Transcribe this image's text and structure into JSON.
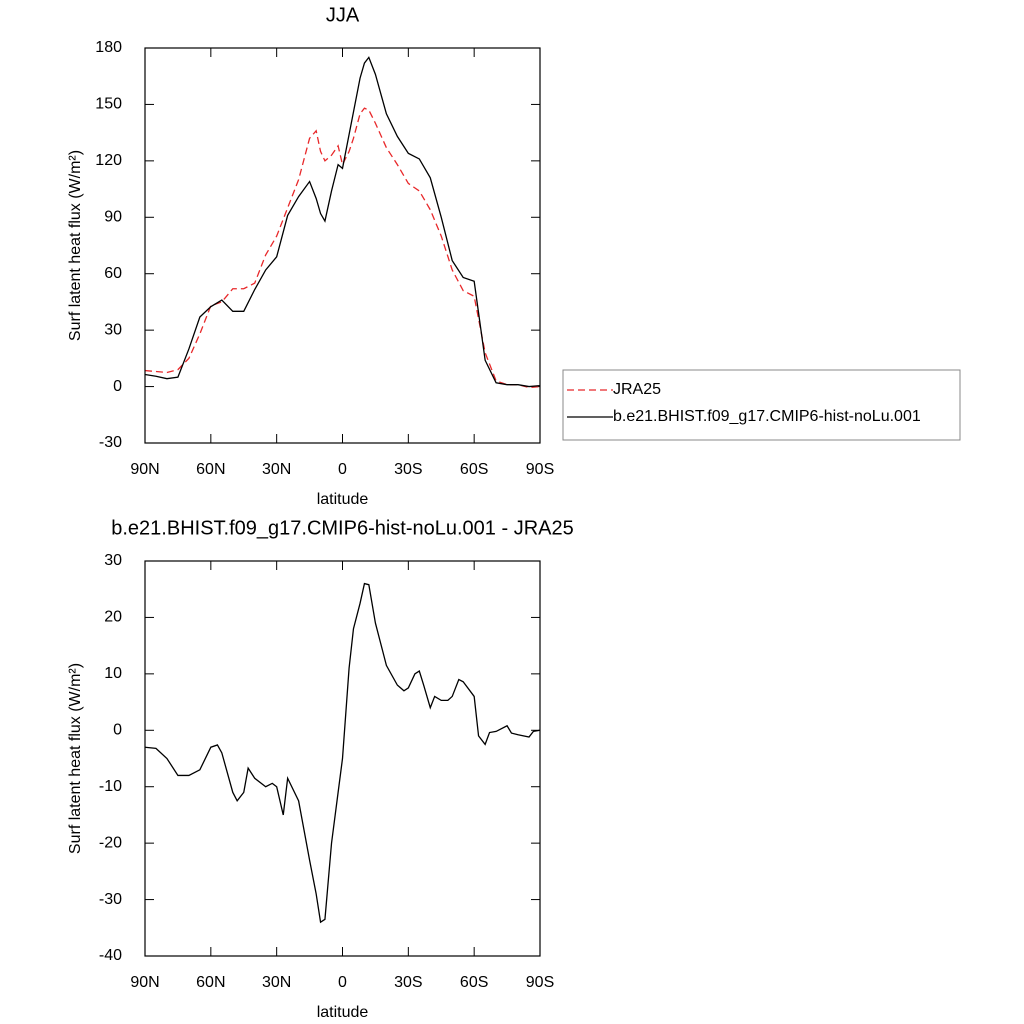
{
  "chart_data": [
    {
      "type": "line",
      "title": "JJA",
      "xlabel": "latitude",
      "ylabel": "Surf latent heat flux (W/m²)",
      "x": [
        90,
        85,
        80,
        75,
        70,
        65,
        60,
        55,
        50,
        45,
        40,
        35,
        30,
        25,
        20,
        15,
        12,
        10,
        8,
        5,
        2,
        0,
        -3,
        -5,
        -8,
        -10,
        -12,
        -15,
        -20,
        -25,
        -30,
        -35,
        -40,
        -45,
        -50,
        -55,
        -60,
        -65,
        -70,
        -75,
        -80,
        -85,
        -90
      ],
      "series": [
        {
          "name": "JRA25",
          "color": "#e8282a",
          "dashed": true,
          "values": [
            8.5,
            8,
            7.5,
            9,
            15,
            28,
            43,
            45,
            52,
            52,
            55,
            70,
            80,
            95,
            110,
            132,
            136,
            125,
            120,
            123,
            128,
            118,
            125,
            132,
            145,
            148,
            147,
            140,
            127,
            118,
            108,
            104,
            94,
            80,
            62,
            51,
            48,
            18,
            3,
            1,
            1,
            -0.5,
            0
          ]
        },
        {
          "name": "b.e21.BHIST.f09_g17.CMIP6-hist-noLu.001",
          "color": "#000000",
          "dashed": false,
          "values": [
            6.4,
            5.5,
            4.2,
            5,
            20,
            37,
            42.5,
            46,
            40,
            40,
            51.6,
            62,
            69,
            91,
            101,
            109,
            100,
            92,
            88,
            104,
            118,
            116,
            134,
            146,
            164,
            172,
            175,
            166,
            145,
            133,
            124,
            121,
            111,
            90,
            67,
            58,
            56,
            14,
            2,
            1,
            1,
            0,
            0.5
          ]
        }
      ],
      "xlim": [
        90,
        -90
      ],
      "xticks": [
        {
          "value": 90,
          "label": "90N"
        },
        {
          "value": 60,
          "label": "60N"
        },
        {
          "value": 30,
          "label": "30N"
        },
        0,
        {
          "value": -30,
          "label": "30S"
        },
        {
          "value": -60,
          "label": "60S"
        },
        {
          "value": -90,
          "label": "90S"
        }
      ],
      "ylim": [
        -30,
        180
      ],
      "yticks": [
        -30,
        0,
        30,
        60,
        90,
        120,
        150,
        180
      ],
      "legend": "right"
    },
    {
      "type": "line",
      "title": "b.e21.BHIST.f09_g17.CMIP6-hist-noLu.001 - JRA25",
      "xlabel": "latitude",
      "ylabel": "Surf latent heat flux (W/m²)",
      "x": [
        90,
        85,
        80,
        75,
        70,
        65,
        60,
        57,
        55,
        50,
        48,
        45,
        43,
        40,
        35,
        32,
        30,
        27,
        25,
        20,
        15,
        12,
        10,
        8,
        5,
        2,
        0,
        -3,
        -5,
        -8,
        -10,
        -12,
        -15,
        -20,
        -25,
        -28,
        -30,
        -33,
        -35,
        -37,
        -40,
        -42,
        -45,
        -48,
        -50,
        -53,
        -55,
        -60,
        -62,
        -65,
        -67,
        -70,
        -75,
        -77,
        -80,
        -85,
        -87,
        -90
      ],
      "color": "#000000",
      "values": [
        -3,
        -3.2,
        -5,
        -8,
        -8,
        -7,
        -3,
        -2.6,
        -4,
        -11,
        -12.5,
        -11,
        -6.7,
        -8.5,
        -10,
        -9.4,
        -10,
        -15,
        -8.5,
        -12.5,
        -23,
        -29,
        -34,
        -33.5,
        -20,
        -11,
        -5,
        11,
        18,
        22.5,
        26,
        25.8,
        19,
        11.5,
        8,
        7,
        7.5,
        10,
        10.5,
        8,
        4,
        6,
        5.3,
        5.3,
        6,
        9,
        8.6,
        6,
        -1,
        -2.5,
        -0.4,
        -0.2,
        0.8,
        -0.5,
        -0.8,
        -1.2,
        -0.2,
        0
      ],
      "xlim": [
        90,
        -90
      ],
      "xticks": [
        {
          "value": 90,
          "label": "90N"
        },
        {
          "value": 60,
          "label": "60N"
        },
        {
          "value": 30,
          "label": "30N"
        },
        0,
        {
          "value": -30,
          "label": "30S"
        },
        {
          "value": -60,
          "label": "60S"
        },
        {
          "value": -90,
          "label": "90S"
        }
      ],
      "ylim": [
        -40,
        30
      ],
      "yticks": [
        -40,
        -30,
        -20,
        -10,
        0,
        10,
        20,
        30
      ]
    }
  ]
}
